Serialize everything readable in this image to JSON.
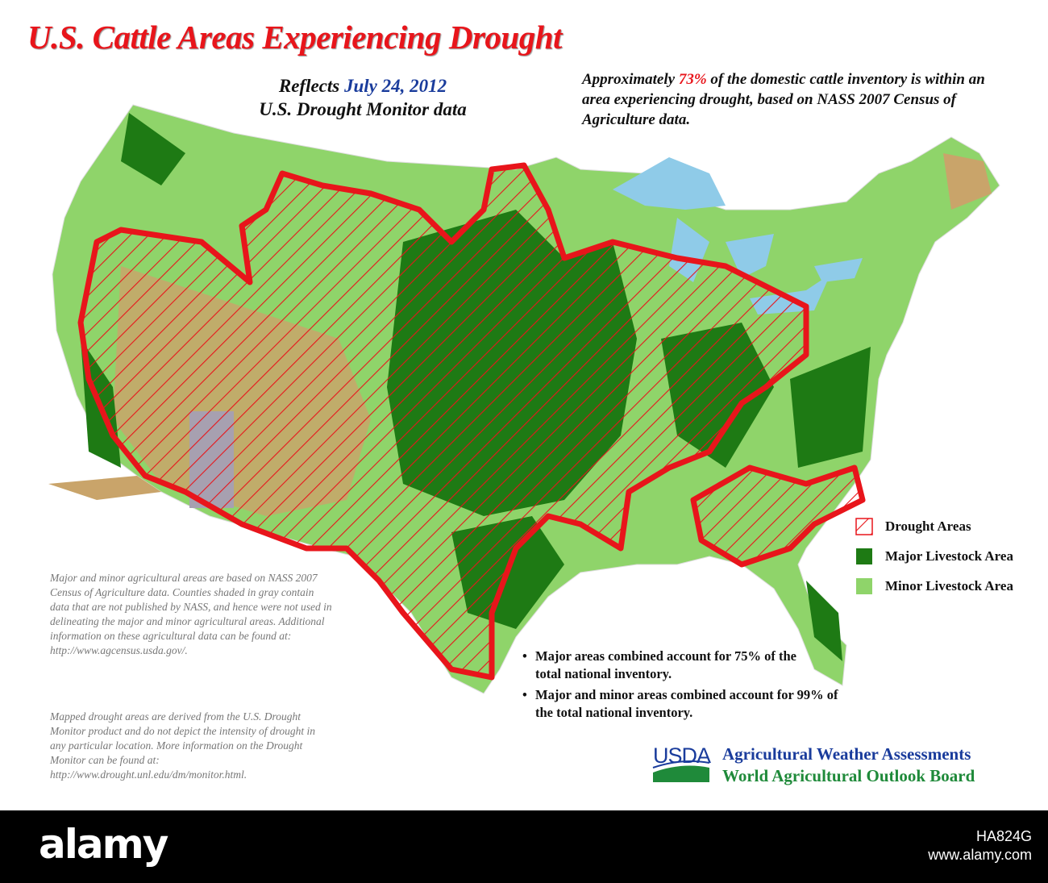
{
  "header": {
    "title": "U.S. Cattle Areas Experiencing Drought",
    "subtitle": {
      "prefix": "Reflects",
      "date": "July 24, 2012",
      "line2": "U.S. Drought Monitor data"
    }
  },
  "note": {
    "before": "Approximately",
    "highlight": "73%",
    "after": "of the domestic cattle inventory is within an area experiencing drought, based on NASS 2007 Census of Agriculture data."
  },
  "legend": [
    "Drought Areas",
    "Major Livestock Area",
    "Minor Livestock Area"
  ],
  "footnotes": [
    "Major and minor agricultural areas are based on NASS 2007 Census of Agriculture data. Counties shaded in gray contain data that are not published by NASS, and hence were not used in delineating the major and minor agricultural areas. Additional information on these agricultural data can be found at: http://www.agcensus.usda.gov/.",
    "Mapped drought areas are derived from the U.S. Drought Monitor product and do not depict the intensity of drought in any particular location. More information on the Drought Monitor can be found at: http://www.drought.unl.edu/dm/monitor.html."
  ],
  "bullets": [
    "Major areas combined account for 75% of the total national inventory.",
    "Major and minor areas combined account for 99% of the total national inventory."
  ],
  "logo": {
    "mark": "USDA",
    "line1": "Agricultural Weather Assessments",
    "line2": "World Agricultural Outlook Board"
  },
  "watermark": {
    "brand": "alamy",
    "image_id": "HA824G",
    "url": "www.alamy.com"
  }
}
